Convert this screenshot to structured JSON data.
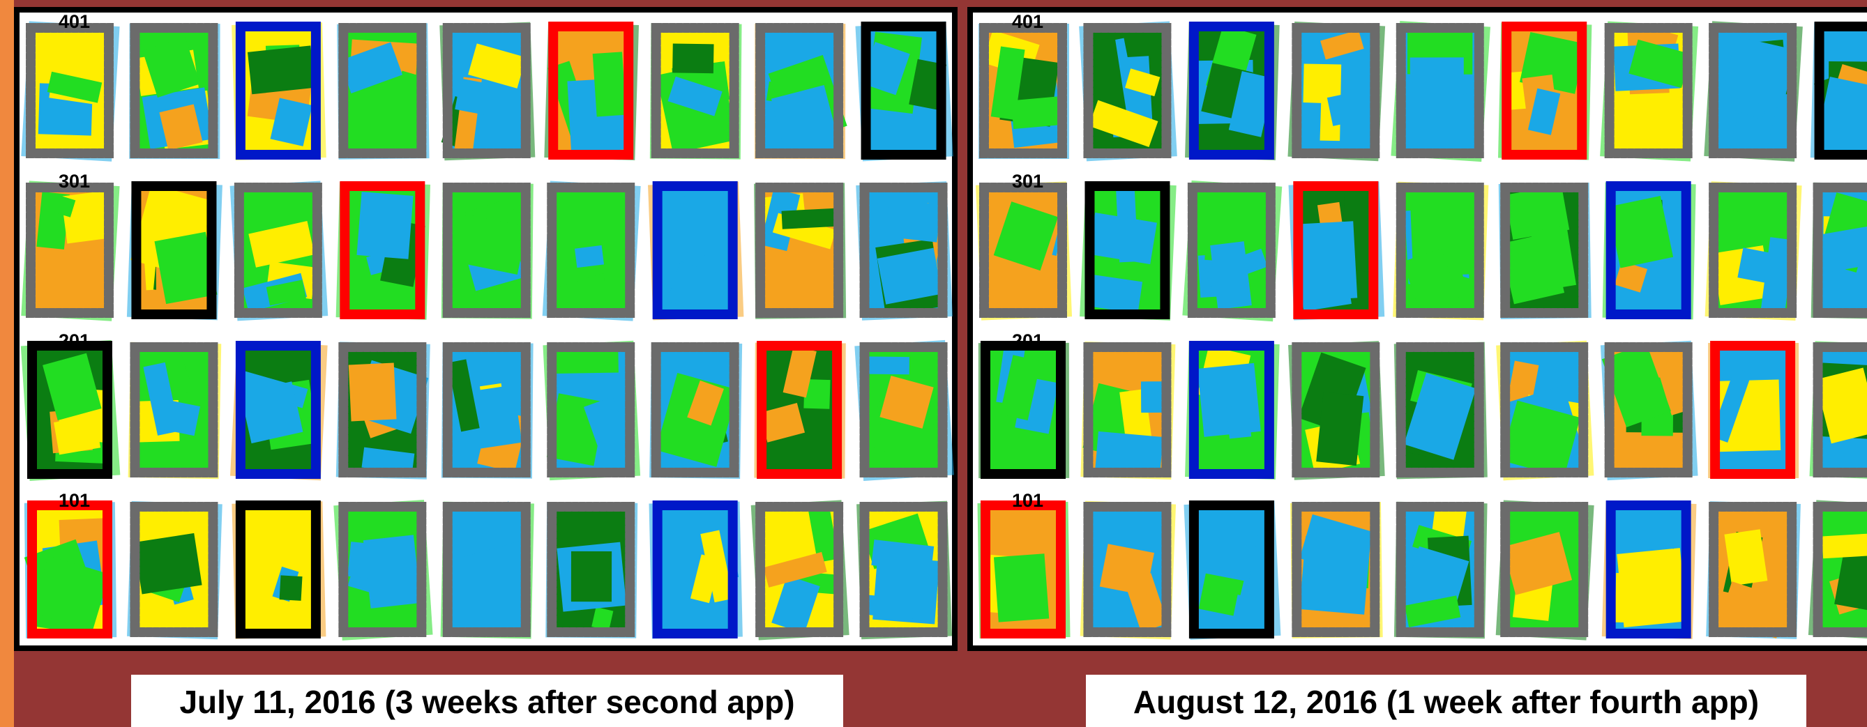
{
  "panels": [
    {
      "plot_labels": [
        "401",
        "301",
        "201",
        "101"
      ],
      "caption": "July 11, 2016 (3 weeks after second app)"
    },
    {
      "plot_labels": [
        "401",
        "301",
        "201",
        "101"
      ],
      "caption": "August 12, 2016 (1 week after fourth app)"
    }
  ]
}
